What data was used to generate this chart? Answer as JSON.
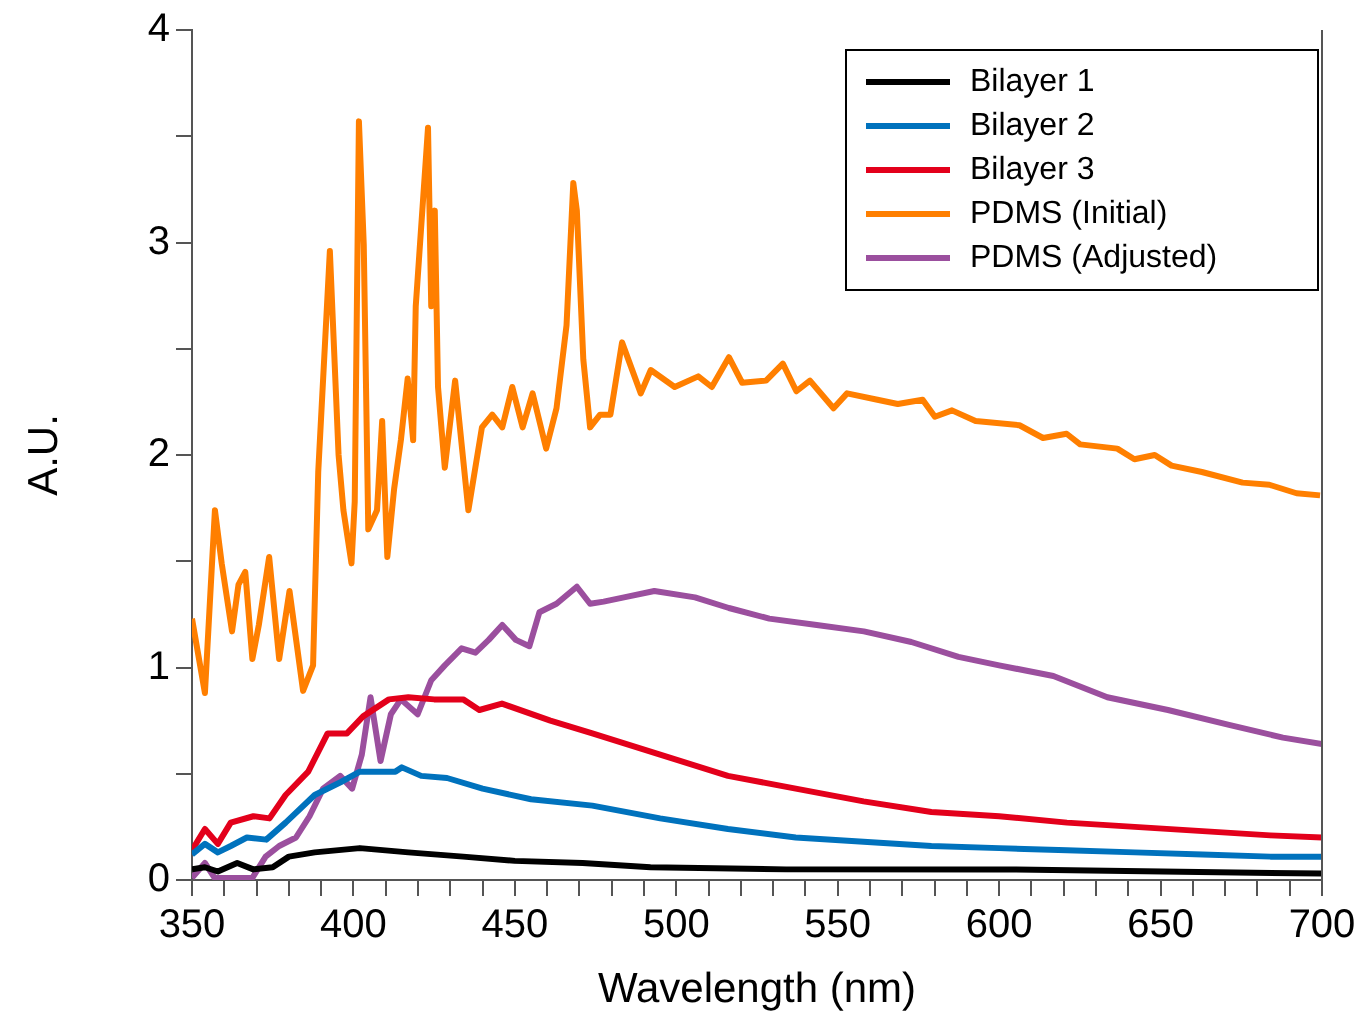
{
  "chart_data": {
    "type": "line",
    "xlabel": "Wavelength (nm)",
    "ylabel": "A.U.",
    "xlim": [
      350,
      700
    ],
    "ylim": [
      0,
      4
    ],
    "xticks": [
      350,
      {
        "value": 360,
        "label": null
      },
      {
        "value": 370,
        "label": null
      },
      {
        "value": 380,
        "label": null
      },
      {
        "value": 390,
        "label": null
      },
      400,
      {
        "value": 410,
        "label": null
      },
      {
        "value": 420,
        "label": null
      },
      {
        "value": 430,
        "label": null
      },
      {
        "value": 440,
        "label": null
      },
      450,
      {
        "value": 460,
        "label": null
      },
      {
        "value": 470,
        "label": null
      },
      {
        "value": 480,
        "label": null
      },
      {
        "value": 490,
        "label": null
      },
      500,
      {
        "value": 510,
        "label": null
      },
      {
        "value": 520,
        "label": null
      },
      {
        "value": 530,
        "label": null
      },
      {
        "value": 540,
        "label": null
      },
      550,
      {
        "value": 560,
        "label": null
      },
      {
        "value": 570,
        "label": null
      },
      {
        "value": 580,
        "label": null
      },
      {
        "value": 590,
        "label": null
      },
      600,
      {
        "value": 610,
        "label": null
      },
      {
        "value": 620,
        "label": null
      },
      {
        "value": 630,
        "label": null
      },
      {
        "value": 640,
        "label": null
      },
      650,
      {
        "value": 660,
        "label": null
      },
      {
        "value": 670,
        "label": null
      },
      {
        "value": 680,
        "label": null
      },
      {
        "value": 690,
        "label": null
      },
      700
    ],
    "yticks": [
      0,
      {
        "value": 0.5,
        "label": null
      },
      1,
      {
        "value": 1.5,
        "label": null
      },
      2,
      {
        "value": 2.5,
        "label": null
      },
      3,
      {
        "value": 3.5,
        "label": null
      },
      4
    ],
    "grid": false,
    "legend": "top right",
    "marker": "none",
    "line_style": "solid",
    "series": [
      {
        "name": "Bilayer 1",
        "color": "#000000",
        "x": [
          350,
          354,
          358,
          364,
          369,
          375,
          380,
          388,
          402,
          417,
          434,
          450,
          471,
          492,
          534,
          600,
          700
        ],
        "values": [
          0.05,
          0.06,
          0.04,
          0.08,
          0.05,
          0.06,
          0.11,
          0.13,
          0.15,
          0.13,
          0.11,
          0.09,
          0.08,
          0.06,
          0.05,
          0.05,
          0.03
        ]
      },
      {
        "name": "Bilayer 2",
        "color": "#0072bd",
        "x": [
          350,
          354,
          358,
          362,
          367,
          373,
          379,
          388,
          396,
          402,
          413,
          415,
          421,
          429,
          440,
          455,
          474,
          495,
          516,
          537,
          558,
          579,
          600,
          621,
          642,
          663,
          684,
          700
        ],
        "values": [
          0.12,
          0.17,
          0.13,
          0.16,
          0.2,
          0.19,
          0.27,
          0.4,
          0.46,
          0.51,
          0.51,
          0.53,
          0.49,
          0.48,
          0.43,
          0.38,
          0.35,
          0.29,
          0.24,
          0.2,
          0.18,
          0.16,
          0.15,
          0.14,
          0.13,
          0.12,
          0.11,
          0.11
        ]
      },
      {
        "name": "Bilayer 3",
        "color": "#e3001b",
        "x": [
          350,
          354,
          358,
          362,
          369,
          374,
          379,
          386,
          392,
          398,
          403,
          411,
          417,
          425,
          434,
          439,
          446,
          461,
          474,
          495,
          516,
          537,
          558,
          579,
          600,
          621,
          642,
          663,
          684,
          700
        ],
        "values": [
          0.14,
          0.24,
          0.17,
          0.27,
          0.3,
          0.29,
          0.4,
          0.51,
          0.69,
          0.69,
          0.77,
          0.85,
          0.86,
          0.85,
          0.85,
          0.8,
          0.83,
          0.75,
          0.69,
          0.59,
          0.49,
          0.43,
          0.37,
          0.32,
          0.3,
          0.27,
          0.25,
          0.23,
          0.21,
          0.2
        ]
      },
      {
        "name": "PDMS (Initial)",
        "color": "#ff7f00",
        "x": [
          350,
          354,
          357.1,
          359.2,
          362.4,
          364.4,
          366.5,
          368.7,
          370.7,
          373.9,
          377,
          380.2,
          384.4,
          387.5,
          389.1,
          392.7,
          395.4,
          396.9,
          399.4,
          400.4,
          401.7,
          403.2,
          404.6,
          407.3,
          408.9,
          410.5,
          412.6,
          414.7,
          416.8,
          418.5,
          419.3,
          423.1,
          424.1,
          425.2,
          426.2,
          428.3,
          431.5,
          435.6,
          439.8,
          443,
          446.1,
          449.2,
          452.4,
          455.5,
          459.7,
          462.9,
          466,
          468.1,
          469.2,
          471.2,
          473.3,
          476.4,
          479.6,
          483.2,
          489,
          492.1,
          499.5,
          506.8,
          511,
          516.3,
          520.4,
          527.8,
          533,
          537.2,
          541.4,
          548.7,
          552.9,
          562.3,
          568.6,
          576.3,
          580.1,
          585.4,
          592.7,
          606.3,
          613.6,
          620.9,
          625.1,
          636.6,
          641.9,
          648.2,
          653.4,
          662.8,
          675.4,
          683.7,
          692.1,
          699.4
        ],
        "values": [
          1.23,
          0.88,
          1.74,
          1.49,
          1.17,
          1.39,
          1.45,
          1.04,
          1.2,
          1.52,
          1.04,
          1.36,
          0.89,
          1.01,
          1.92,
          2.96,
          2,
          1.74,
          1.49,
          1.78,
          3.57,
          2.99,
          1.65,
          1.74,
          2.16,
          1.52,
          1.84,
          2.07,
          2.36,
          2.07,
          2.7,
          3.54,
          2.7,
          3.15,
          2.32,
          1.94,
          2.35,
          1.74,
          2.13,
          2.19,
          2.13,
          2.32,
          2.13,
          2.29,
          2.03,
          2.22,
          2.61,
          3.28,
          3.15,
          2.45,
          2.13,
          2.19,
          2.19,
          2.53,
          2.29,
          2.4,
          2.32,
          2.37,
          2.32,
          2.46,
          2.34,
          2.35,
          2.43,
          2.3,
          2.35,
          2.22,
          2.29,
          2.26,
          2.24,
          2.26,
          2.18,
          2.21,
          2.16,
          2.14,
          2.08,
          2.1,
          2.05,
          2.03,
          1.98,
          2,
          1.95,
          1.92,
          1.87,
          1.86,
          1.82,
          1.81
        ]
      },
      {
        "name": "PDMS (Adjusted)",
        "color": "#9b4f9e",
        "x": [
          350,
          354,
          357,
          368.7,
          372.8,
          377,
          382.2,
          386.4,
          390.6,
          395.9,
          399.6,
          402.6,
          405.3,
          408.4,
          411.6,
          414.7,
          419.9,
          424.1,
          428.3,
          433.5,
          437.8,
          441.9,
          446.1,
          450.3,
          454.5,
          457.6,
          462.9,
          469.2,
          473.3,
          477.5,
          483.8,
          493.2,
          505.8,
          516.3,
          528.8,
          543.5,
          558.1,
          572.8,
          587.4,
          600,
          616.8,
          633.5,
          652.3,
          671.2,
          687.9,
          700
        ],
        "values": [
          0.01,
          0.08,
          0.01,
          0.01,
          0.11,
          0.16,
          0.2,
          0.3,
          0.43,
          0.49,
          0.43,
          0.59,
          0.86,
          0.56,
          0.78,
          0.85,
          0.78,
          0.94,
          1.01,
          1.09,
          1.07,
          1.13,
          1.2,
          1.13,
          1.1,
          1.26,
          1.3,
          1.38,
          1.3,
          1.31,
          1.33,
          1.36,
          1.33,
          1.28,
          1.23,
          1.2,
          1.17,
          1.12,
          1.05,
          1.01,
          0.96,
          0.86,
          0.8,
          0.73,
          0.67,
          0.64
        ]
      }
    ]
  }
}
